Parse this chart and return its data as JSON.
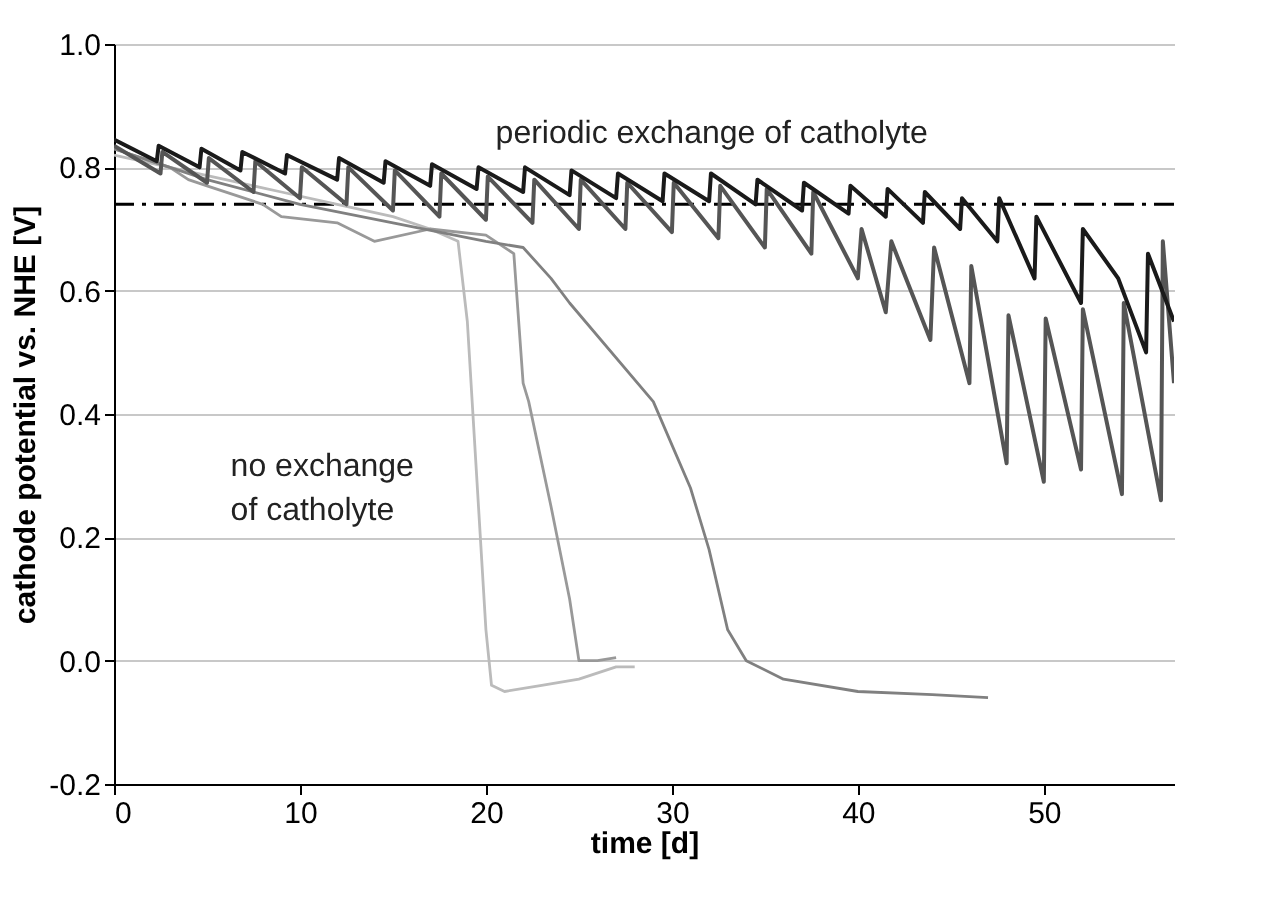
{
  "chart_data": {
    "type": "line",
    "xlabel": "time [d]",
    "ylabel": "cathode potential vs. NHE [V]",
    "xlim": [
      0,
      57
    ],
    "xticks": [
      0,
      10,
      20,
      30,
      40,
      50
    ],
    "ylim": [
      -0.2,
      1.0
    ],
    "yticks": [
      -0.2,
      {
        "value": 0,
        "label": "0.0"
      },
      0.2,
      0.4,
      0.6,
      0.8,
      {
        "value": 1,
        "label": "1.0"
      }
    ],
    "grid": "y",
    "line_style": "solid",
    "marker": "none",
    "annotations": [
      "periodic exchange of catholyte",
      "no exchange\nof catholyte"
    ],
    "ref_lines": [
      {
        "axis": "y",
        "value": 0.74,
        "label": null,
        "color": "#000000",
        "line_style": "dashdot"
      }
    ],
    "series": [
      {
        "color": "#bbbbbb",
        "x": [
          0,
          3,
          6,
          9,
          12,
          15,
          17,
          18.5,
          19,
          19.5,
          20,
          20.3,
          21,
          23,
          25,
          27,
          28
        ],
        "values": [
          0.82,
          0.8,
          0.78,
          0.76,
          0.74,
          0.72,
          0.7,
          0.68,
          0.55,
          0.3,
          0.05,
          -0.04,
          -0.05,
          -0.04,
          -0.03,
          -0.01,
          -0.01
        ]
      },
      {
        "color": "#999999",
        "x": [
          0,
          3,
          4,
          5,
          8,
          9,
          12,
          14,
          17,
          20,
          21.5,
          22,
          22.3,
          23.5,
          24.5,
          25,
          26,
          27
        ],
        "values": [
          0.83,
          0.8,
          0.78,
          0.77,
          0.74,
          0.72,
          0.71,
          0.68,
          0.7,
          0.69,
          0.66,
          0.45,
          0.42,
          0.25,
          0.1,
          0.0,
          0.0,
          0.005
        ]
      },
      {
        "color": "#808080",
        "x": [
          0,
          5,
          10,
          15,
          20,
          22,
          23.5,
          24.5,
          29,
          30,
          31,
          32,
          33,
          34,
          36,
          40,
          44,
          47
        ],
        "values": [
          0.83,
          0.78,
          0.74,
          0.71,
          0.68,
          0.67,
          0.62,
          0.58,
          0.42,
          0.35,
          0.28,
          0.18,
          0.05,
          0.0,
          -0.03,
          -0.05,
          -0.055,
          -0.06
        ]
      },
      {
        "color": "#555555",
        "x": [
          0,
          2.5,
          2.6,
          5,
          5.1,
          7.5,
          7.6,
          10,
          10.1,
          12.5,
          12.6,
          15,
          15.1,
          17.5,
          17.6,
          20,
          20.1,
          22.5,
          22.6,
          25,
          25.1,
          27.5,
          27.6,
          30,
          30.1,
          32.5,
          32.6,
          35,
          35.1,
          37.5,
          37.6,
          40,
          40.2,
          41.5,
          41.8,
          43.9,
          44.1,
          46,
          46.1,
          48,
          48.1,
          50,
          50.1,
          52,
          52.1,
          54.2,
          54.3,
          56.3,
          56.4,
          57
        ],
        "values": [
          0.835,
          0.79,
          0.825,
          0.775,
          0.815,
          0.76,
          0.81,
          0.75,
          0.8,
          0.74,
          0.8,
          0.73,
          0.795,
          0.72,
          0.79,
          0.715,
          0.785,
          0.71,
          0.78,
          0.7,
          0.78,
          0.7,
          0.775,
          0.695,
          0.775,
          0.685,
          0.77,
          0.67,
          0.765,
          0.66,
          0.76,
          0.62,
          0.7,
          0.565,
          0.68,
          0.52,
          0.67,
          0.45,
          0.64,
          0.32,
          0.56,
          0.29,
          0.555,
          0.31,
          0.57,
          0.27,
          0.58,
          0.26,
          0.68,
          0.45
        ]
      },
      {
        "color": "#1a1a1a",
        "x": [
          0,
          2.3,
          2.4,
          4.6,
          4.7,
          6.8,
          6.9,
          9.2,
          9.3,
          12,
          12.1,
          14.5,
          14.6,
          17,
          17.1,
          19.5,
          19.6,
          22,
          22.1,
          24.5,
          24.6,
          27,
          27.1,
          29.5,
          29.6,
          32,
          32.1,
          34.5,
          34.6,
          37,
          37.1,
          39.5,
          39.6,
          41.5,
          41.6,
          43.5,
          43.6,
          45.5,
          45.6,
          47.5,
          47.6,
          49.5,
          49.6,
          52,
          52.1,
          54,
          55.5,
          55.6,
          57
        ],
        "values": [
          0.845,
          0.81,
          0.835,
          0.8,
          0.83,
          0.795,
          0.825,
          0.79,
          0.82,
          0.78,
          0.815,
          0.775,
          0.81,
          0.77,
          0.805,
          0.765,
          0.8,
          0.76,
          0.8,
          0.755,
          0.795,
          0.75,
          0.79,
          0.745,
          0.79,
          0.745,
          0.79,
          0.74,
          0.78,
          0.73,
          0.775,
          0.725,
          0.77,
          0.72,
          0.765,
          0.71,
          0.76,
          0.7,
          0.75,
          0.68,
          0.75,
          0.62,
          0.72,
          0.58,
          0.7,
          0.62,
          0.5,
          0.66,
          0.55
        ]
      }
    ]
  }
}
